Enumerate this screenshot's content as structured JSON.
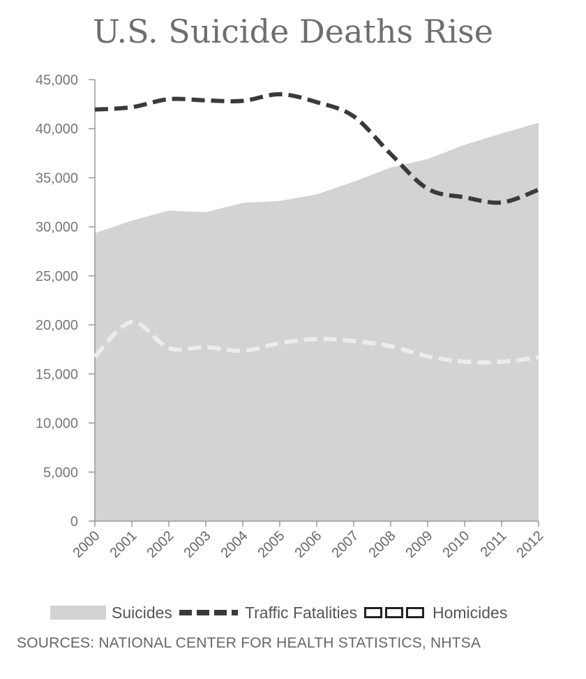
{
  "chart_data": {
    "type": "area",
    "title": "U.S. Suicide Deaths Rise",
    "x": [
      "2000",
      "2001",
      "2002",
      "2003",
      "2004",
      "2005",
      "2006",
      "2007",
      "2008",
      "2009",
      "2010",
      "2011",
      "2012"
    ],
    "series": [
      {
        "name": "Suicides",
        "kind": "area",
        "color": "#d4d3d4",
        "values": [
          29350,
          30622,
          31655,
          31484,
          32439,
          32637,
          33300,
          34598,
          36035,
          36909,
          38364,
          39518,
          40600
        ]
      },
      {
        "name": "Traffic Fatalities",
        "kind": "dashed-line",
        "color": "#3a3a3a",
        "values": [
          41945,
          42196,
          43005,
          42884,
          42836,
          43510,
          42708,
          41259,
          37423,
          33883,
          32999,
          32479,
          33782
        ]
      },
      {
        "name": "Homicides",
        "kind": "dashed-line",
        "color": "#ececec",
        "values": [
          16765,
          20308,
          17638,
          17732,
          17357,
          18124,
          18573,
          18361,
          17826,
          16799,
          16259,
          16238,
          16688
        ]
      }
    ],
    "ylim": [
      0,
      45000
    ],
    "y_ticks": [
      0,
      5000,
      10000,
      15000,
      20000,
      25000,
      30000,
      35000,
      40000,
      45000
    ],
    "y_tick_labels": [
      "0",
      "5,000",
      "10,000",
      "15,000",
      "20,000",
      "25,000",
      "30,000",
      "35,000",
      "40,000",
      "45,000"
    ],
    "grid": false,
    "legend_position": "bottom",
    "source": "SOURCES: NATIONAL CENTER FOR HEALTH STATISTICS, NHTSA"
  }
}
